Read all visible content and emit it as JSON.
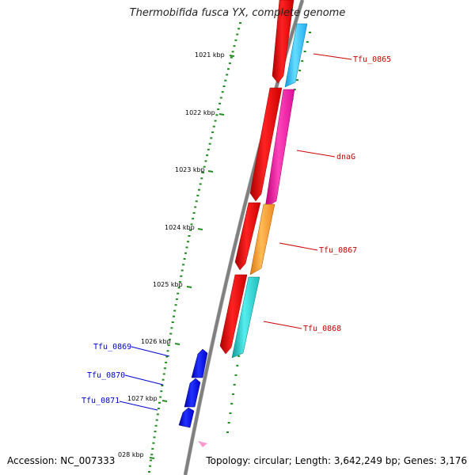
{
  "title": "Thermobifida fusca YX, complete genome",
  "footer": {
    "accession": "Accession: NC_007333",
    "topology": "Topology: circular; Length: 3,642,249 bp; Genes: 3,176"
  },
  "ruler": {
    "ticks": [
      "1021 kbp",
      "1022 kbp",
      "1023 kbp",
      "1024 kbp",
      "1025 kbp",
      "1026 kbp",
      "1027 kbp",
      "028 kbp"
    ]
  },
  "colors": {
    "backbone": "#808080",
    "forward_cds": "#ff0000",
    "reverse_cds": "#0000ff",
    "ruler_tick": "#228b22",
    "forward_label": "#cc0000",
    "reverse_label": "#0000cc"
  },
  "forward_genes": [
    {
      "label": "Tfu_0865",
      "color": "#33bbff"
    },
    {
      "label": "dnaG",
      "color": "#ee2299"
    },
    {
      "label": "Tfu_0867",
      "color": "#ff9933"
    },
    {
      "label": "Tfu_0868",
      "color": "#22cccc"
    }
  ],
  "reverse_genes": [
    {
      "label": "Tfu_0869"
    },
    {
      "label": "Tfu_0870"
    },
    {
      "label": "Tfu_0871"
    }
  ]
}
